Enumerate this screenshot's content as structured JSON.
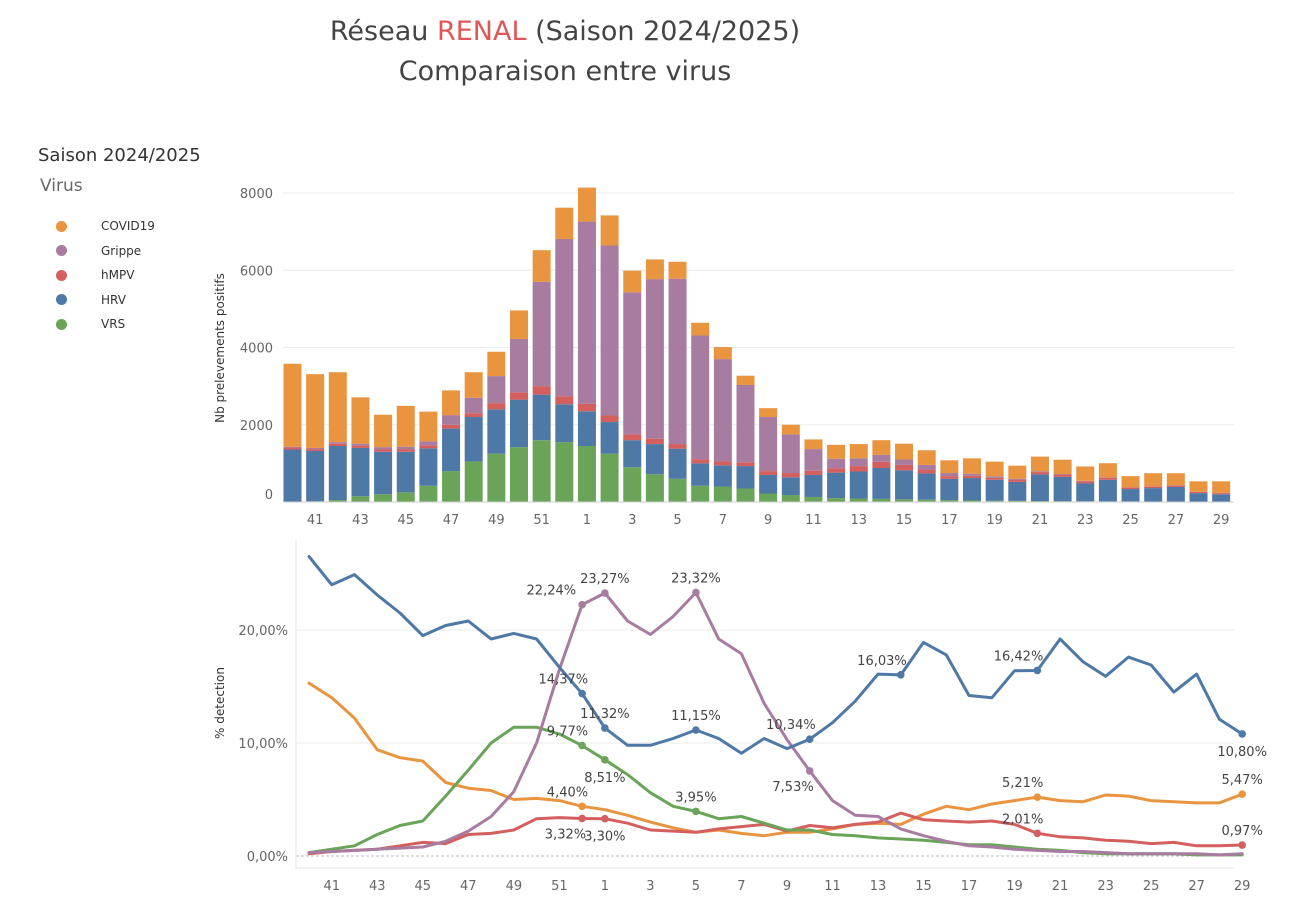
{
  "title": {
    "prefix": "Réseau ",
    "accent": "RENAL",
    "suffix": " (Saison 2024/2025)",
    "line2": "Comparaison entre virus",
    "accent_color": "#e15759"
  },
  "legend": {
    "heading": "Saison 2024/2025",
    "subheading": "Virus",
    "items": [
      {
        "label": "COVID19",
        "color": "#e9943f"
      },
      {
        "label": "Grippe",
        "color": "#a87ca0"
      },
      {
        "label": "hMPV",
        "color": "#d35f5f"
      },
      {
        "label": "HRV",
        "color": "#4e79a7"
      },
      {
        "label": "VRS",
        "color": "#69a458"
      }
    ]
  },
  "chart_data": [
    {
      "type": "bar",
      "stacked": true,
      "ylabel": "Nb prelevements positifs",
      "ylim": [
        0,
        8500
      ],
      "yticks": [
        0,
        2000,
        4000,
        6000,
        8000
      ],
      "categories": [
        "40",
        "41",
        "42",
        "43",
        "44",
        "45",
        "46",
        "47",
        "48",
        "49",
        "50",
        "51",
        "52",
        "1",
        "2",
        "3",
        "4",
        "5",
        "6",
        "7",
        "8",
        "9",
        "10",
        "11",
        "12",
        "13",
        "14",
        "15",
        "16",
        "17",
        "18",
        "19",
        "20",
        "21",
        "22",
        "23",
        "24",
        "25",
        "26",
        "27",
        "28",
        "29"
      ],
      "xtick_labels": [
        "41",
        "43",
        "45",
        "47",
        "49",
        "51",
        "1",
        "3",
        "5",
        "7",
        "9",
        "11",
        "13",
        "15",
        "17",
        "19",
        "21",
        "23",
        "25",
        "27",
        "29"
      ],
      "series": [
        {
          "name": "VRS",
          "color": "#69a458",
          "values": [
            10,
            20,
            50,
            150,
            200,
            250,
            420,
            800,
            1050,
            1250,
            1420,
            1600,
            1550,
            1450,
            1250,
            900,
            720,
            600,
            420,
            400,
            350,
            220,
            180,
            130,
            100,
            90,
            80,
            70,
            60,
            50,
            40,
            35,
            30,
            25,
            20,
            20,
            15,
            15,
            10,
            10,
            10,
            10
          ]
        },
        {
          "name": "HRV",
          "color": "#4e79a7",
          "values": [
            1350,
            1300,
            1400,
            1250,
            1100,
            1050,
            970,
            1100,
            1150,
            1150,
            1230,
            1180,
            980,
            900,
            820,
            700,
            780,
            780,
            580,
            550,
            580,
            480,
            460,
            570,
            660,
            700,
            800,
            750,
            680,
            550,
            580,
            540,
            490,
            690,
            630,
            460,
            560,
            320,
            350,
            380,
            220,
            190
          ]
        },
        {
          "name": "hMPV",
          "color": "#d35f5f",
          "values": [
            50,
            50,
            60,
            60,
            60,
            60,
            80,
            100,
            100,
            160,
            190,
            220,
            210,
            190,
            170,
            150,
            140,
            120,
            110,
            100,
            100,
            100,
            110,
            110,
            110,
            140,
            160,
            140,
            100,
            70,
            60,
            50,
            50,
            60,
            60,
            60,
            50,
            40,
            40,
            40,
            30,
            30
          ]
        },
        {
          "name": "Grippe",
          "color": "#a87ca0",
          "values": [
            20,
            30,
            40,
            50,
            60,
            70,
            100,
            250,
            400,
            700,
            1380,
            2700,
            4070,
            4720,
            4400,
            3680,
            4130,
            4280,
            3200,
            2650,
            2000,
            1400,
            1000,
            560,
            250,
            200,
            180,
            140,
            120,
            80,
            50,
            40,
            30,
            20,
            15,
            10,
            10,
            5,
            5,
            5,
            5,
            5
          ]
        },
        {
          "name": "COVID19",
          "color": "#e9943f",
          "values": [
            2150,
            1910,
            1810,
            1200,
            840,
            1060,
            770,
            640,
            660,
            630,
            740,
            820,
            810,
            880,
            780,
            560,
            510,
            440,
            330,
            310,
            240,
            230,
            250,
            250,
            360,
            370,
            380,
            410,
            380,
            330,
            400,
            380,
            340,
            380,
            370,
            370,
            370,
            290,
            340,
            310,
            270,
            300
          ]
        }
      ]
    },
    {
      "type": "line",
      "ylabel": "% detection",
      "ylim": [
        0,
        27
      ],
      "yticks": [
        0,
        10,
        20
      ],
      "ytick_labels": [
        "0,00%",
        "10,00%",
        "20,00%"
      ],
      "categories": [
        "40",
        "41",
        "42",
        "43",
        "44",
        "45",
        "46",
        "47",
        "48",
        "49",
        "50",
        "51",
        "52",
        "1",
        "2",
        "3",
        "4",
        "5",
        "6",
        "7",
        "8",
        "9",
        "10",
        "11",
        "12",
        "13",
        "14",
        "15",
        "16",
        "17",
        "18",
        "19",
        "20",
        "21",
        "22",
        "23",
        "24",
        "25",
        "26",
        "27",
        "28",
        "29"
      ],
      "xtick_labels": [
        "41",
        "43",
        "45",
        "47",
        "49",
        "51",
        "1",
        "3",
        "5",
        "7",
        "9",
        "11",
        "13",
        "15",
        "17",
        "19",
        "21",
        "23",
        "25",
        "27",
        "29"
      ],
      "series": [
        {
          "name": "HRV",
          "color": "#4e79a7",
          "values": [
            26.5,
            24.0,
            24.9,
            23.1,
            21.5,
            19.5,
            20.4,
            20.8,
            19.2,
            19.7,
            19.2,
            16.7,
            14.37,
            11.32,
            9.8,
            9.8,
            10.4,
            11.15,
            10.4,
            9.1,
            10.4,
            9.5,
            10.34,
            11.8,
            13.7,
            16.1,
            16.03,
            18.9,
            17.8,
            14.2,
            14.0,
            16.4,
            16.42,
            19.2,
            17.2,
            15.9,
            17.6,
            16.9,
            14.5,
            16.1,
            12.1,
            10.8
          ]
        },
        {
          "name": "Grippe",
          "color": "#a87ca0",
          "values": [
            0.3,
            0.4,
            0.5,
            0.6,
            0.7,
            0.8,
            1.3,
            2.2,
            3.5,
            5.7,
            10.0,
            16.5,
            22.24,
            23.27,
            20.8,
            19.6,
            21.2,
            23.32,
            19.2,
            17.9,
            13.5,
            10.3,
            7.53,
            4.9,
            3.6,
            3.5,
            2.4,
            1.8,
            1.3,
            0.9,
            0.8,
            0.6,
            0.5,
            0.4,
            0.4,
            0.3,
            0.2,
            0.2,
            0.2,
            0.2,
            0.1,
            0.2
          ]
        },
        {
          "name": "VRS",
          "color": "#69a458",
          "values": [
            0.3,
            0.6,
            0.9,
            1.9,
            2.7,
            3.1,
            5.3,
            7.6,
            10.0,
            11.4,
            11.4,
            10.8,
            9.77,
            8.51,
            7.2,
            5.6,
            4.4,
            3.95,
            3.3,
            3.5,
            2.9,
            2.3,
            2.3,
            1.9,
            1.8,
            1.6,
            1.5,
            1.4,
            1.2,
            1.0,
            1.0,
            0.8,
            0.6,
            0.5,
            0.3,
            0.2,
            0.2,
            0.2,
            0.2,
            0.1,
            0.1,
            0.1
          ]
        },
        {
          "name": "hMPV",
          "color": "#d35f5f",
          "values": [
            0.2,
            0.4,
            0.5,
            0.6,
            0.9,
            1.2,
            1.1,
            1.9,
            2.0,
            2.3,
            3.3,
            3.4,
            3.32,
            3.3,
            2.9,
            2.3,
            2.2,
            2.1,
            2.4,
            2.6,
            2.8,
            2.2,
            2.7,
            2.5,
            2.8,
            3.0,
            3.8,
            3.2,
            3.1,
            3.0,
            3.1,
            2.8,
            2.01,
            1.7,
            1.6,
            1.4,
            1.3,
            1.1,
            1.2,
            0.9,
            0.9,
            0.97
          ]
        },
        {
          "name": "COVID19",
          "color": "#e9943f",
          "values": [
            15.3,
            14.0,
            12.2,
            9.4,
            8.7,
            8.4,
            6.5,
            6.0,
            5.8,
            5.0,
            5.1,
            4.9,
            4.4,
            4.1,
            3.6,
            3.0,
            2.5,
            2.1,
            2.3,
            2.0,
            1.8,
            2.1,
            2.1,
            2.4,
            2.8,
            2.9,
            2.8,
            3.7,
            4.4,
            4.1,
            4.6,
            4.9,
            5.21,
            4.9,
            4.8,
            5.4,
            5.3,
            4.9,
            4.8,
            4.7,
            4.7,
            5.47
          ]
        }
      ],
      "annotations": [
        {
          "series": "Grippe",
          "index": 12,
          "label": "22,24%",
          "pos": "left"
        },
        {
          "series": "Grippe",
          "index": 13,
          "label": "23,27%",
          "pos": "above"
        },
        {
          "series": "Grippe",
          "index": 17,
          "label": "23,32%",
          "pos": "above"
        },
        {
          "series": "Grippe",
          "index": 22,
          "label": "7,53%",
          "pos": "below-left"
        },
        {
          "series": "HRV",
          "index": 12,
          "label": "14,37%",
          "pos": "above-left"
        },
        {
          "series": "HRV",
          "index": 13,
          "label": "11,32%",
          "pos": "above"
        },
        {
          "series": "HRV",
          "index": 17,
          "label": "11,15%",
          "pos": "above"
        },
        {
          "series": "HRV",
          "index": 22,
          "label": "10,34%",
          "pos": "above-left"
        },
        {
          "series": "HRV",
          "index": 26,
          "label": "16,03%",
          "pos": "above-left"
        },
        {
          "series": "HRV",
          "index": 32,
          "label": "16,42%",
          "pos": "above-left"
        },
        {
          "series": "HRV",
          "index": 41,
          "label": "10,80%",
          "pos": "below"
        },
        {
          "series": "VRS",
          "index": 12,
          "label": "9,77%",
          "pos": "above-left"
        },
        {
          "series": "VRS",
          "index": 13,
          "label": "8,51%",
          "pos": "below"
        },
        {
          "series": "VRS",
          "index": 17,
          "label": "3,95%",
          "pos": "above"
        },
        {
          "series": "COVID19",
          "index": 12,
          "label": "4,40%",
          "pos": "above-left"
        },
        {
          "series": "COVID19",
          "index": 32,
          "label": "5,21%",
          "pos": "above-left"
        },
        {
          "series": "COVID19",
          "index": 41,
          "label": "5,47%",
          "pos": "above"
        },
        {
          "series": "hMPV",
          "index": 12,
          "label": "3,32%",
          "pos": "below-left"
        },
        {
          "series": "hMPV",
          "index": 13,
          "label": "3,30%",
          "pos": "below"
        },
        {
          "series": "hMPV",
          "index": 32,
          "label": "2,01%",
          "pos": "above-left"
        },
        {
          "series": "hMPV",
          "index": 41,
          "label": "0,97%",
          "pos": "above"
        }
      ]
    }
  ]
}
